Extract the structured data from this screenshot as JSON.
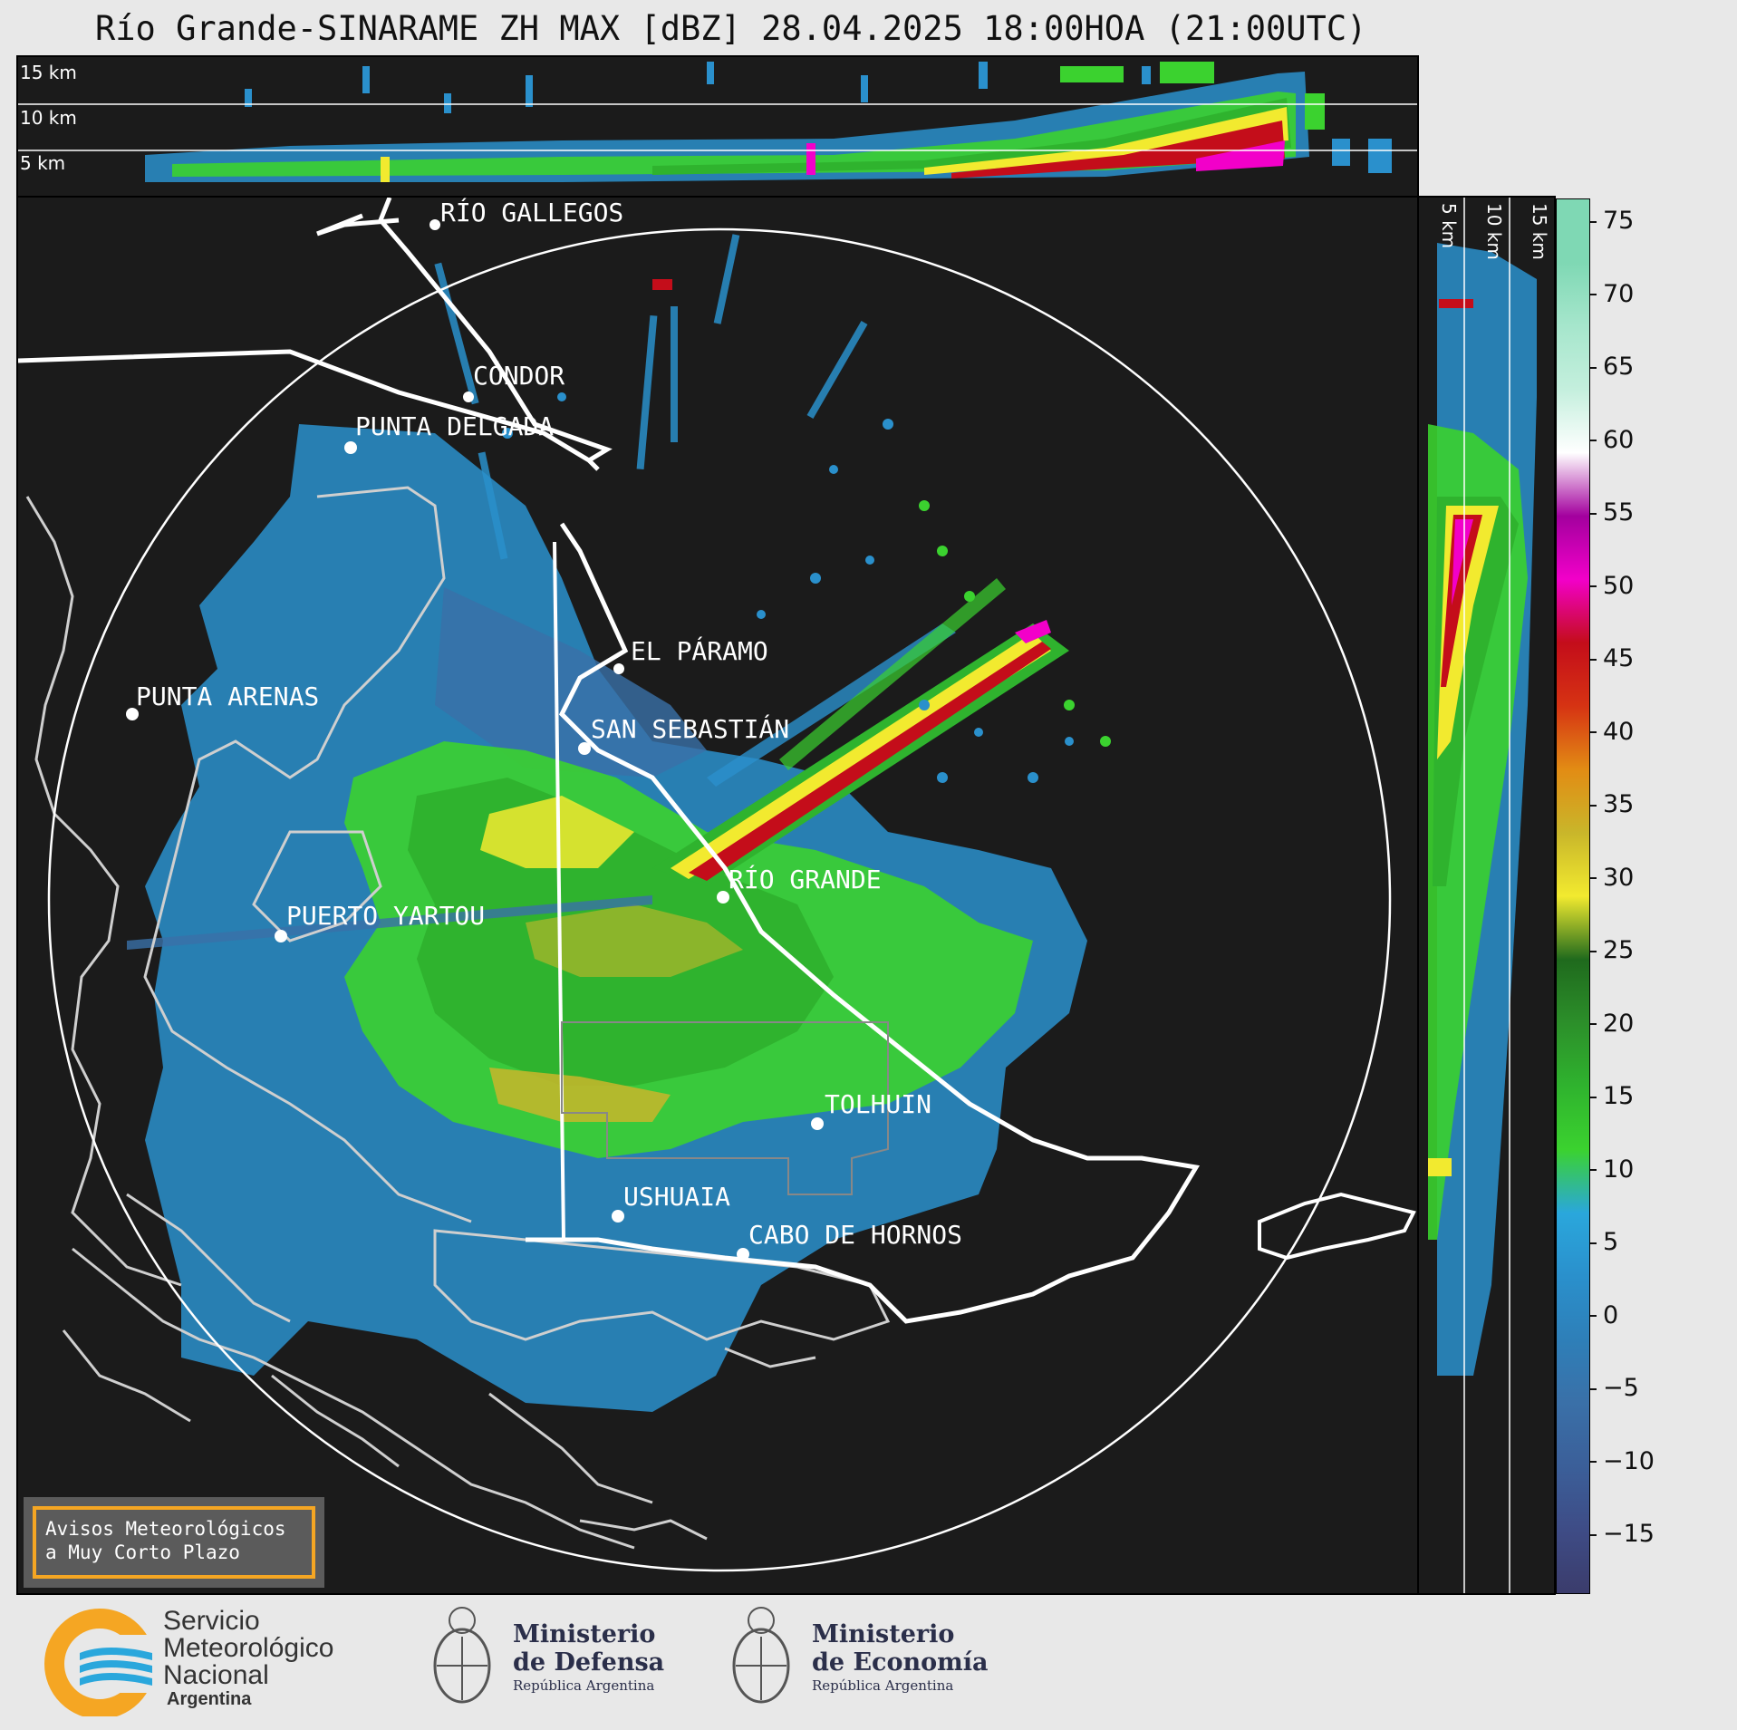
{
  "title": "Río Grande-SINARAME ZH MAX [dBZ] 28.04.2025 18:00HOA (21:00UTC)",
  "top_panel": {
    "heights": [
      "15 km",
      "10 km",
      "5 km"
    ]
  },
  "right_panel": {
    "heights": [
      "5 km",
      "10 km",
      "15 km"
    ]
  },
  "cities": [
    {
      "name": "RÍO GALLEGOS"
    },
    {
      "name": "CÓNDOR"
    },
    {
      "name": "PUNTA DELGADA"
    },
    {
      "name": "EL PÁRAMO"
    },
    {
      "name": "PUNTA ARENAS"
    },
    {
      "name": "SAN SEBASTIÁN"
    },
    {
      "name": "RÍO GRANDE"
    },
    {
      "name": "PUERTO YARTOU"
    },
    {
      "name": "TOLHUIN"
    },
    {
      "name": "USHUAIA"
    },
    {
      "name": "CABO DE HORNOS"
    }
  ],
  "colorbar": {
    "unit": "dBZ",
    "ticks": [
      "75",
      "70",
      "65",
      "60",
      "55",
      "50",
      "45",
      "40",
      "35",
      "30",
      "25",
      "20",
      "15",
      "10",
      "5",
      "0",
      "−5",
      "−10",
      "−15"
    ],
    "colors": [
      "#3b3c6c",
      "#3e4c86",
      "#3b5f99",
      "#3a70a8",
      "#2e7fb8",
      "#2a90cc",
      "#2aa7dc",
      "#3bd22f",
      "#2fb32e",
      "#2c8f2a",
      "#1f6a1d",
      "#f2ea2f",
      "#c9b62a",
      "#e28c14",
      "#d63313",
      "#c40d1a",
      "#f200c9",
      "#a3009e",
      "#ffffff",
      "#c4efdd",
      "#a6e6cc",
      "#7fd8b4"
    ]
  },
  "warning_box": {
    "line1": "Avisos Meteorológicos",
    "line2": "a Muy Corto Plazo"
  },
  "footer": {
    "smn": {
      "line1": "Servicio",
      "line2": "Meteorológico",
      "line3": "Nacional",
      "line4": "Argentina"
    },
    "defensa": {
      "line1": "Ministerio",
      "line2": "de Defensa",
      "line3": "República Argentina"
    },
    "economia": {
      "line1": "Ministerio",
      "line2": "de Economía",
      "line3": "República Argentina"
    }
  },
  "colors": {
    "background": "#1b1b1b",
    "border": "#e8e8e8",
    "accent": "#f5a623",
    "logo_blue": "#2aa7dc",
    "logo_orange": "#f5a623"
  }
}
